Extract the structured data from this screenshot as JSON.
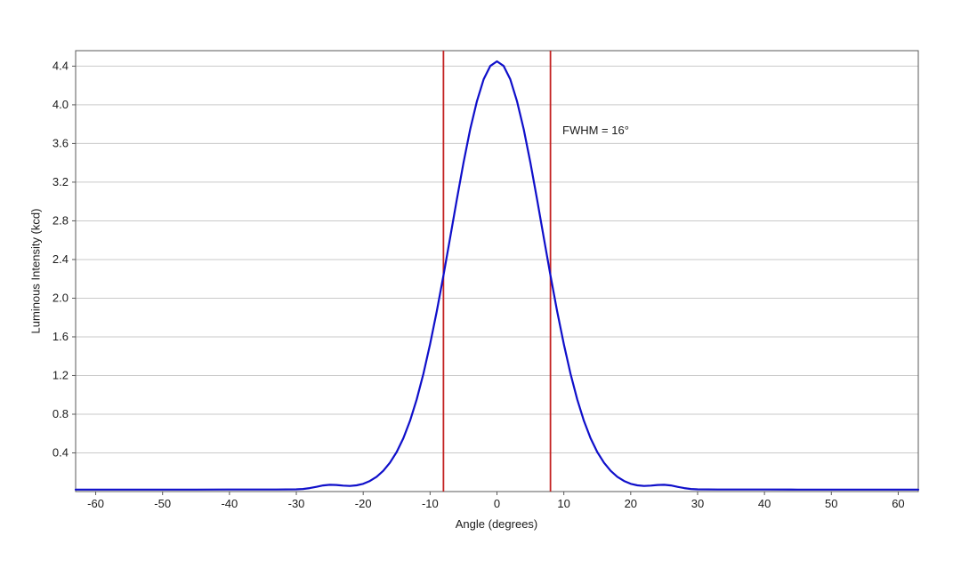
{
  "chart_data": {
    "type": "line",
    "title": "",
    "xlabel": "Angle (degrees)",
    "ylabel": "Luminous Intensity (kcd)",
    "xlim": [
      -63,
      63
    ],
    "ylim": [
      0,
      4.56
    ],
    "x_ticks": [
      -60,
      -50,
      -40,
      -30,
      -20,
      -10,
      0,
      10,
      20,
      30,
      40,
      50,
      60
    ],
    "y_ticks": [
      0.4,
      0.8,
      1.2,
      1.6,
      2.0,
      2.4,
      2.8,
      3.2,
      3.6,
      4.0,
      4.4
    ],
    "grid": "horizontal",
    "legend": "none",
    "colors": {
      "grid": "#c9c9c9",
      "axis": "#595959",
      "series": "#0f0fca",
      "marker_lines": "#c32222"
    },
    "peak_value": 4.45,
    "fwhm_degrees": 16,
    "vlines": [
      {
        "x": -8,
        "color": "#c32222"
      },
      {
        "x": 8,
        "color": "#c32222"
      }
    ],
    "annotations": [
      {
        "text": "FWHM = 16°",
        "x": 9.8,
        "y": 3.72
      }
    ],
    "series": [
      {
        "name": "Luminous Intensity",
        "color": "#0f0fca",
        "points": [
          [
            -63,
            0.02
          ],
          [
            -60,
            0.02
          ],
          [
            -55,
            0.02
          ],
          [
            -50,
            0.02
          ],
          [
            -45,
            0.02
          ],
          [
            -40,
            0.021
          ],
          [
            -36,
            0.021
          ],
          [
            -33,
            0.021
          ],
          [
            -30,
            0.023
          ],
          [
            -29,
            0.027
          ],
          [
            -28,
            0.036
          ],
          [
            -27,
            0.049
          ],
          [
            -26,
            0.063
          ],
          [
            -25,
            0.07
          ],
          [
            -24,
            0.068
          ],
          [
            -23,
            0.062
          ],
          [
            -22,
            0.058
          ],
          [
            -21,
            0.064
          ],
          [
            -20,
            0.08
          ],
          [
            -19,
            0.109
          ],
          [
            -18,
            0.153
          ],
          [
            -17,
            0.214
          ],
          [
            -16,
            0.298
          ],
          [
            -15,
            0.409
          ],
          [
            -14,
            0.552
          ],
          [
            -13,
            0.732
          ],
          [
            -12,
            0.953
          ],
          [
            -11,
            1.217
          ],
          [
            -10,
            1.522
          ],
          [
            -9,
            1.866
          ],
          [
            -8,
            2.237
          ],
          [
            -7,
            2.627
          ],
          [
            -6,
            3.021
          ],
          [
            -5,
            3.401
          ],
          [
            -4,
            3.746
          ],
          [
            -3,
            4.038
          ],
          [
            -2,
            4.263
          ],
          [
            -1,
            4.402
          ],
          [
            0,
            4.45
          ],
          [
            1,
            4.402
          ],
          [
            2,
            4.263
          ],
          [
            3,
            4.038
          ],
          [
            4,
            3.746
          ],
          [
            5,
            3.401
          ],
          [
            6,
            3.021
          ],
          [
            7,
            2.627
          ],
          [
            8,
            2.237
          ],
          [
            9,
            1.866
          ],
          [
            10,
            1.522
          ],
          [
            11,
            1.217
          ],
          [
            12,
            0.953
          ],
          [
            13,
            0.732
          ],
          [
            14,
            0.552
          ],
          [
            15,
            0.409
          ],
          [
            16,
            0.298
          ],
          [
            17,
            0.214
          ],
          [
            18,
            0.153
          ],
          [
            19,
            0.109
          ],
          [
            20,
            0.08
          ],
          [
            21,
            0.064
          ],
          [
            22,
            0.058
          ],
          [
            23,
            0.062
          ],
          [
            24,
            0.068
          ],
          [
            25,
            0.07
          ],
          [
            26,
            0.063
          ],
          [
            27,
            0.049
          ],
          [
            28,
            0.036
          ],
          [
            29,
            0.027
          ],
          [
            30,
            0.023
          ],
          [
            33,
            0.021
          ],
          [
            36,
            0.021
          ],
          [
            40,
            0.021
          ],
          [
            45,
            0.02
          ],
          [
            50,
            0.02
          ],
          [
            55,
            0.02
          ],
          [
            60,
            0.02
          ],
          [
            63,
            0.02
          ]
        ]
      }
    ]
  }
}
